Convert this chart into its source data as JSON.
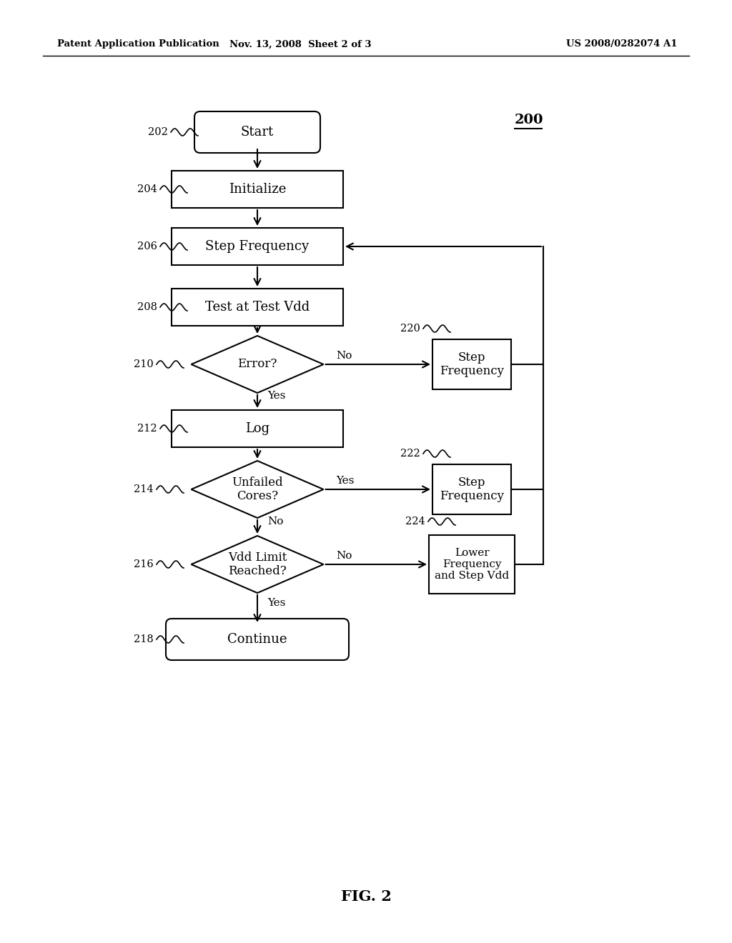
{
  "header_left": "Patent Application Publication",
  "header_mid": "Nov. 13, 2008  Sheet 2 of 3",
  "header_right": "US 2008/0282074 A1",
  "fig_label": "FIG. 2",
  "diagram_label": "200",
  "bg_color": "#ffffff",
  "fw": 10.24,
  "fh": 13.2,
  "dpi": 100
}
